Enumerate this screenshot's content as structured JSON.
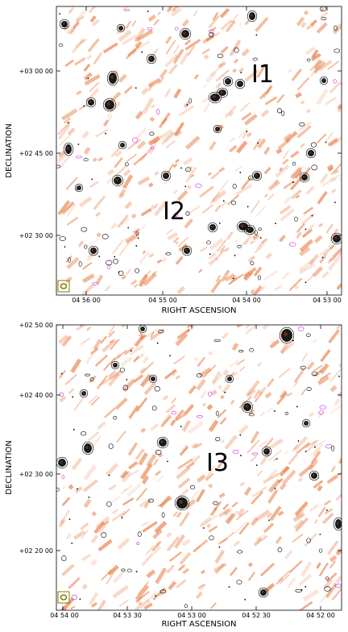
{
  "panels": [
    {
      "id": "top",
      "ylabel": "DECLINATION",
      "xlabel": "RIGHT ASCENSION",
      "xticks": [
        "04 56 00",
        "04 55 00",
        "04 54 00",
        "04 53 00"
      ],
      "yticks": [
        "+03 00 00",
        "+02 45 00",
        "+02 30 00"
      ],
      "labels": [
        "I1",
        "I2"
      ]
    },
    {
      "id": "bottom",
      "ylabel": "DECLINATION",
      "xlabel": "RIGHT ASCENSION",
      "xticks": [
        "04 54 00",
        "04 53 30",
        "04 53 00",
        "04 52 30",
        "04 52 00"
      ],
      "yticks": [
        "+02 50 00",
        "+02 40 00",
        "+02 30 00",
        "+02 20 00"
      ],
      "labels": [
        "I3"
      ]
    }
  ],
  "colors": {
    "map": "#e8804a",
    "contour": "#000000",
    "neg_contour": "#cc33cc",
    "beam": "#8a7a00"
  }
}
